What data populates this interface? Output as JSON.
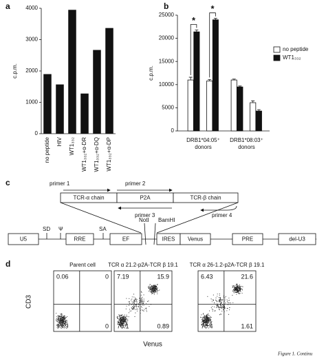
{
  "panel_labels": [
    "a",
    "b",
    "c",
    "d"
  ],
  "chart_data": [
    {
      "type": "bar",
      "y_label": "c.p.m.",
      "categories": [
        "no peptide",
        "HIV",
        "WT1₃₃₂",
        "WT1₃₃₂+α-DR",
        "WT1₃₃₂+α-DQ",
        "WT1₃₃₂+α-DP"
      ],
      "values": [
        1900,
        1570,
        3950,
        1280,
        2670,
        3370
      ],
      "color": "#111111",
      "ylim": [
        0,
        4000
      ],
      "yticks": [
        0,
        1000,
        2000,
        3000,
        4000
      ]
    },
    {
      "type": "grouped_bar",
      "y_label": "c.p.m.",
      "categories": [
        null,
        null,
        null,
        null
      ],
      "group_labels": [
        [
          "DRB1*04:05⁺",
          "donors"
        ],
        [
          "DRB1*08:03⁺",
          "donors"
        ]
      ],
      "series": [
        {
          "name": "no peptide",
          "color": "#ffffff",
          "values": [
            11000,
            10800,
            11000,
            6100
          ],
          "errors": [
            600,
            300,
            200,
            400
          ]
        },
        {
          "name": "WT1₃₃₂",
          "color": "#111111",
          "values": [
            21400,
            24000,
            9500,
            4300
          ],
          "errors": [
            400,
            300,
            200,
            300
          ]
        }
      ],
      "annotations": [
        "*",
        "*"
      ],
      "ylim": [
        0,
        25000
      ],
      "yticks": [
        0,
        5000,
        10000,
        15000,
        20000,
        25000
      ],
      "legend": "right"
    }
  ],
  "diagram": {
    "primers": [
      "primer 1",
      "primer 2",
      "primer 3",
      "primer 4"
    ],
    "insert": [
      "TCR-α chain",
      "P2A",
      "TCR-β chain"
    ],
    "vector": [
      "U5",
      "RRE",
      "EF",
      "IRES",
      "Venus",
      "PRE",
      "del-U3"
    ],
    "sites": [
      "SD",
      "Ψ",
      "SA",
      "NotI",
      "BamHI"
    ]
  },
  "flow": {
    "y_label": "CD3",
    "x_label": "Venus",
    "plots": [
      {
        "title": "Parent cell",
        "quadrants": [
          0.06,
          0,
          99.9,
          0
        ]
      },
      {
        "title": "TCR α 21.2-p2A-TCR β 19.1",
        "quadrants": [
          7.19,
          15.9,
          76.1,
          0.89
        ]
      },
      {
        "title": "TCR α 26-1.2-p2A-TCR β 19.1",
        "quadrants": [
          6.43,
          21.6,
          70.4,
          1.61
        ]
      }
    ]
  },
  "footer": "Figure 1. Continu"
}
